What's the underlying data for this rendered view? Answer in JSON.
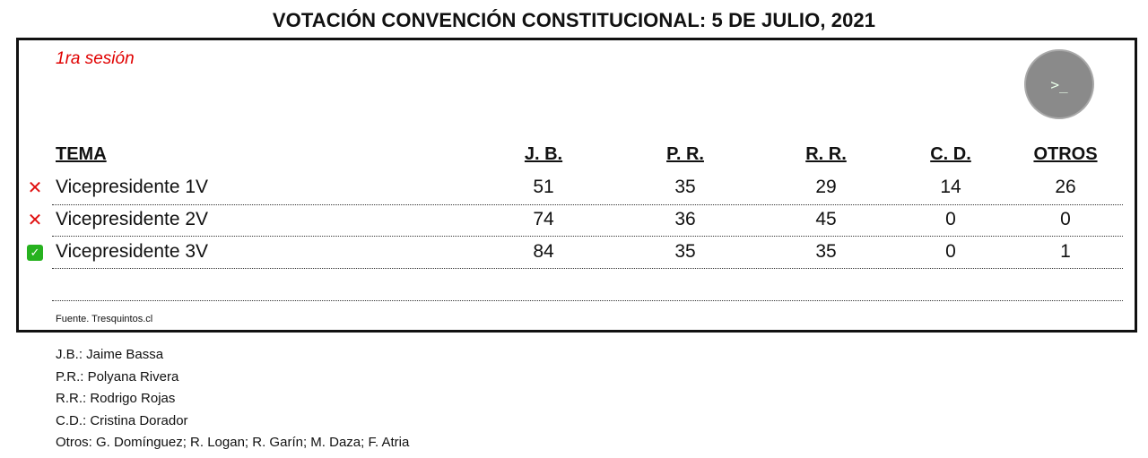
{
  "title": "VOTACIÓN CONVENCIÓN CONSTITUCIONAL: 5 DE JULIO, 2021",
  "session": "1ra sesión",
  "terminal_icon": "terminal-icon",
  "terminal_glyph": ">_",
  "headers": {
    "tema": "TEMA",
    "jb": "J. B.",
    "pr": "P. R.",
    "rr": "R. R.",
    "cd": "C. D.",
    "otros": "OTROS"
  },
  "rows": [
    {
      "status": "rejected",
      "status_glyph": "✕",
      "tema": "Vicepresidente 1V",
      "jb": "51",
      "pr": "35",
      "rr": "29",
      "cd": "14",
      "otros": "26"
    },
    {
      "status": "rejected",
      "status_glyph": "✕",
      "tema": "Vicepresidente 2V",
      "jb": "74",
      "pr": "36",
      "rr": "45",
      "cd": "0",
      "otros": "0"
    },
    {
      "status": "approved",
      "status_glyph": "✓",
      "tema": "Vicepresidente 3V",
      "jb": "84",
      "pr": "35",
      "rr": "35",
      "cd": "0",
      "otros": "1"
    }
  ],
  "source": "Fuente. Tresquintos.cl",
  "legend": [
    "J.B.: Jaime Bassa",
    "P.R.: Polyana Rivera",
    "R.R.: Rodrigo Rojas",
    "C.D.: Cristina Dorador",
    "Otros: G. Domínguez; R. Logan; R. Garín; M. Daza; F. Atria"
  ],
  "colors": {
    "session": "#e00000",
    "reject": "#e01010",
    "approve": "#27b21f",
    "terminal_bg": "#8a8a8a"
  }
}
